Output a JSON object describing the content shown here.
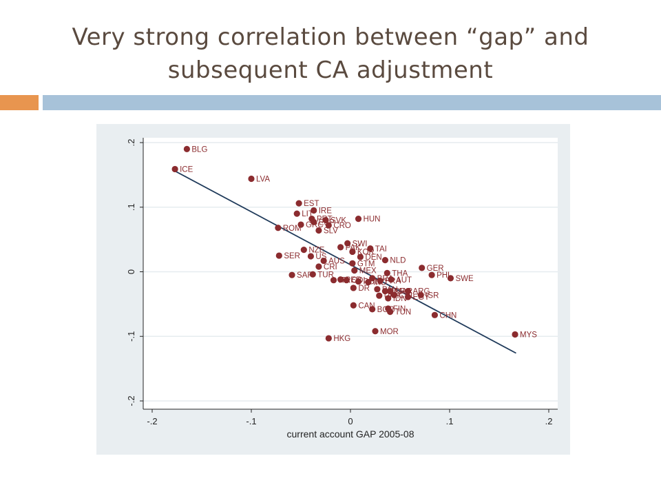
{
  "slide": {
    "title_line1": "Very strong correlation between “gap” and",
    "title_line2": "subsequent CA adjustment",
    "colors": {
      "accent_orange": "#e8954f",
      "accent_blue": "#a7c2d9",
      "panel": "#e9eef1",
      "marker": "#8b2c2f",
      "fit_line": "#1f3a5a"
    }
  },
  "chart_data": {
    "type": "scatter",
    "title": "",
    "xlabel": "current account GAP 2005-08",
    "ylabel": "",
    "xlim": [
      -0.2,
      0.2
    ],
    "ylim": [
      -0.2,
      0.2
    ],
    "xticks": [
      -0.2,
      -0.1,
      0,
      0.1,
      0.2
    ],
    "xtick_labels": [
      "-.2",
      "-.1",
      "0",
      ".1",
      ".2"
    ],
    "yticks": [
      -0.2,
      -0.1,
      0,
      0.1,
      0.2
    ],
    "ytick_labels": [
      "-.2",
      "-.1",
      "0",
      ".1",
      ".2"
    ],
    "grid": "horizontal",
    "fit_line": {
      "x": [
        -0.177,
        0.167
      ],
      "y": [
        0.156,
        -0.126
      ]
    },
    "points": [
      {
        "label": "BLG",
        "x": -0.165,
        "y": 0.19
      },
      {
        "label": "ICE",
        "x": -0.177,
        "y": 0.159
      },
      {
        "label": "LVA",
        "x": -0.1,
        "y": 0.144
      },
      {
        "label": "EST",
        "x": -0.052,
        "y": 0.106
      },
      {
        "label": "IRE",
        "x": -0.037,
        "y": 0.095
      },
      {
        "label": "LIT",
        "x": -0.054,
        "y": 0.09
      },
      {
        "label": "PRT",
        "x": -0.039,
        "y": 0.082
      },
      {
        "label": "SVK",
        "x": -0.025,
        "y": 0.08
      },
      {
        "label": "HUN",
        "x": 0.008,
        "y": 0.082
      },
      {
        "label": "ESP",
        "x": -0.037,
        "y": 0.077
      },
      {
        "label": "CRO",
        "x": -0.022,
        "y": 0.072
      },
      {
        "label": "GRC",
        "x": -0.05,
        "y": 0.073
      },
      {
        "label": "ROM",
        "x": -0.073,
        "y": 0.068
      },
      {
        "label": "SLV",
        "x": -0.032,
        "y": 0.064
      },
      {
        "label": "SWI",
        "x": -0.003,
        "y": 0.044
      },
      {
        "label": "PAK",
        "x": -0.01,
        "y": 0.038
      },
      {
        "label": "TAI",
        "x": 0.02,
        "y": 0.036
      },
      {
        "label": "KOR",
        "x": 0.002,
        "y": 0.031
      },
      {
        "label": "NZE",
        "x": -0.047,
        "y": 0.034
      },
      {
        "label": "DEN",
        "x": 0.01,
        "y": 0.023
      },
      {
        "label": "SER",
        "x": -0.072,
        "y": 0.025
      },
      {
        "label": "US",
        "x": -0.04,
        "y": 0.024
      },
      {
        "label": "NLD",
        "x": 0.035,
        "y": 0.018
      },
      {
        "label": "AUS",
        "x": -0.027,
        "y": 0.017
      },
      {
        "label": "GTM",
        "x": 0.002,
        "y": 0.013
      },
      {
        "label": "CRI",
        "x": -0.032,
        "y": 0.008
      },
      {
        "label": "GER",
        "x": 0.072,
        "y": 0.006
      },
      {
        "label": "MEX",
        "x": 0.004,
        "y": 0.002
      },
      {
        "label": "THA",
        "x": 0.037,
        "y": -0.002
      },
      {
        "label": "PHL",
        "x": 0.082,
        "y": -0.005
      },
      {
        "label": "SAF",
        "x": -0.059,
        "y": -0.005
      },
      {
        "label": "TUR",
        "x": -0.038,
        "y": -0.004
      },
      {
        "label": "SWE",
        "x": 0.101,
        "y": -0.01
      },
      {
        "label": "AUT",
        "x": 0.041,
        "y": -0.012
      },
      {
        "label": "BRA",
        "x": 0.022,
        "y": -0.01
      },
      {
        "label": "FRA",
        "x": 0.03,
        "y": -0.014
      },
      {
        "label": "COL",
        "x": -0.004,
        "y": -0.013
      },
      {
        "label": "POL",
        "x": 0.008,
        "y": -0.015
      },
      {
        "label": "ITA",
        "x": -0.017,
        "y": -0.013
      },
      {
        "label": "PER",
        "x": -0.01,
        "y": -0.012
      },
      {
        "label": "IND",
        "x": 0.018,
        "y": -0.016
      },
      {
        "label": "DR",
        "x": 0.003,
        "y": -0.025
      },
      {
        "label": "ARG",
        "x": 0.058,
        "y": -0.03
      },
      {
        "label": "PAN",
        "x": 0.027,
        "y": -0.027
      },
      {
        "label": "JOR",
        "x": 0.035,
        "y": -0.03
      },
      {
        "label": "ISR",
        "x": 0.071,
        "y": -0.036
      },
      {
        "label": "CHL",
        "x": 0.044,
        "y": -0.036
      },
      {
        "label": "MAR",
        "x": 0.04,
        "y": -0.03
      },
      {
        "label": "URY",
        "x": 0.029,
        "y": -0.037
      },
      {
        "label": "IDN",
        "x": 0.038,
        "y": -0.041
      },
      {
        "label": "EGY",
        "x": 0.058,
        "y": -0.039
      },
      {
        "label": "CAN",
        "x": 0.003,
        "y": -0.052
      },
      {
        "label": "CHN",
        "x": 0.085,
        "y": -0.067
      },
      {
        "label": "BGR",
        "x": 0.022,
        "y": -0.058
      },
      {
        "label": "FIN",
        "x": 0.038,
        "y": -0.057
      },
      {
        "label": "TUN",
        "x": 0.04,
        "y": -0.062
      },
      {
        "label": "MYS",
        "x": 0.166,
        "y": -0.097
      },
      {
        "label": "MOR",
        "x": 0.025,
        "y": -0.092
      },
      {
        "label": "HKG",
        "x": -0.022,
        "y": -0.103
      }
    ]
  }
}
